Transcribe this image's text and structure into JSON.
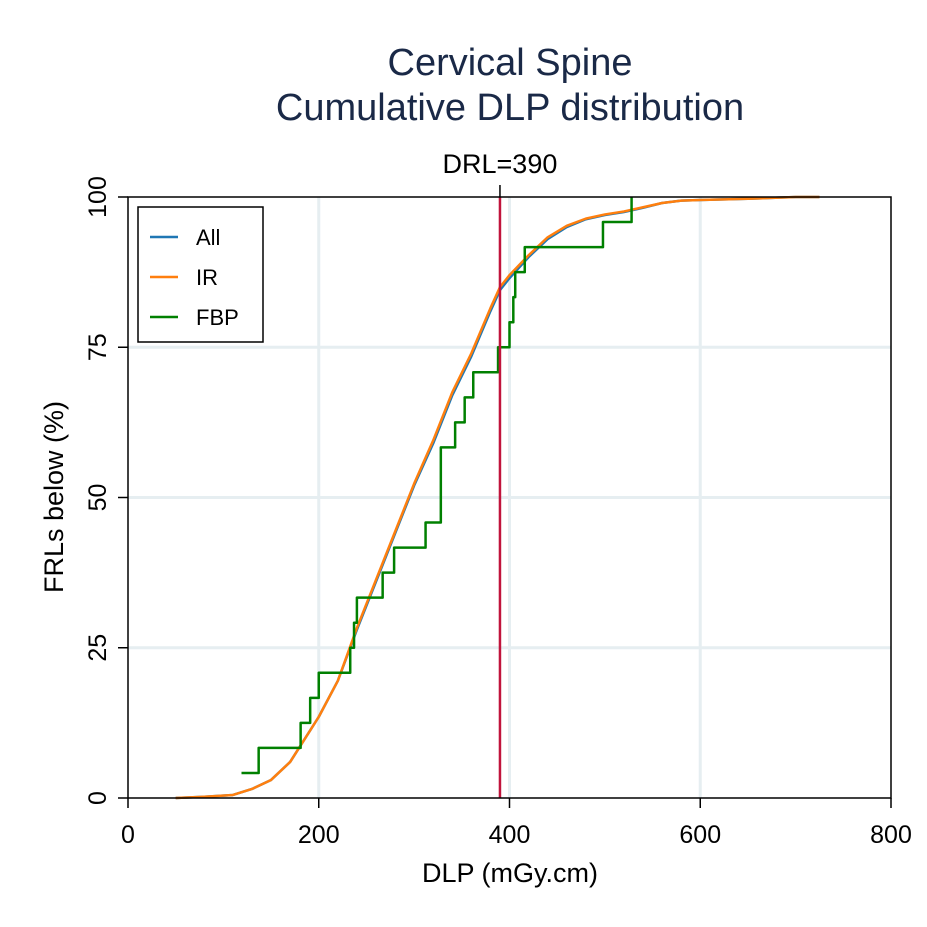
{
  "chart_data": {
    "type": "line",
    "title": "Cervical Spine",
    "subtitle": "Cumulative DLP distribution",
    "xlabel": "DLP (mGy.cm)",
    "ylabel": "FRLs below (%)",
    "xlim": [
      0,
      800
    ],
    "ylim": [
      0,
      100
    ],
    "xticks": [
      "0",
      "200",
      "400",
      "600",
      "800"
    ],
    "yticks": [
      "0",
      "25",
      "50",
      "75",
      "100"
    ],
    "grid": true,
    "legend_position": "top-left",
    "reference_line": {
      "x": 390,
      "label": "DRL=390",
      "color": "#c0143c"
    },
    "series": [
      {
        "name": "All",
        "color": "#1f77b4",
        "step": false,
        "x": [
          50,
          80,
          110,
          130,
          150,
          170,
          180,
          200,
          220,
          240,
          260,
          280,
          300,
          320,
          340,
          360,
          380,
          390,
          400,
          420,
          440,
          460,
          480,
          500,
          520,
          540,
          560,
          580,
          600,
          650,
          700,
          725
        ],
        "y": [
          0,
          0.2,
          0.5,
          1.5,
          3,
          6,
          8.5,
          13.5,
          19.5,
          28,
          36,
          44,
          52,
          59,
          67,
          73.5,
          81,
          84.5,
          86.5,
          90,
          93,
          95,
          96.3,
          97,
          97.5,
          98.2,
          99,
          99.4,
          99.5,
          99.7,
          100,
          100
        ]
      },
      {
        "name": "IR",
        "color": "#ff7f0e",
        "step": false,
        "x": [
          50,
          80,
          110,
          130,
          150,
          170,
          180,
          200,
          220,
          240,
          260,
          280,
          300,
          320,
          340,
          360,
          380,
          390,
          400,
          420,
          440,
          460,
          480,
          500,
          520,
          540,
          560,
          580,
          600,
          650,
          700,
          725
        ],
        "y": [
          0,
          0.2,
          0.5,
          1.5,
          3,
          6,
          8.5,
          13.5,
          19.5,
          28.3,
          36.3,
          44.3,
          52.3,
          59.5,
          67.5,
          74,
          81.5,
          85,
          87,
          90.3,
          93.3,
          95.2,
          96.4,
          97.1,
          97.6,
          98.3,
          99,
          99.4,
          99.5,
          99.7,
          100,
          100
        ]
      },
      {
        "name": "FBP",
        "color": "#008000",
        "step": true,
        "x": [
          119,
          137,
          181,
          191,
          200,
          233,
          237,
          240,
          267,
          279,
          312,
          328,
          343,
          353,
          362,
          388,
          400,
          404,
          406,
          416,
          498,
          528
        ],
        "y": [
          4.17,
          8.33,
          12.5,
          16.67,
          20.83,
          25,
          29.17,
          33.33,
          37.5,
          41.67,
          45.83,
          58.33,
          62.5,
          66.67,
          70.83,
          75,
          79.17,
          83.33,
          87.5,
          91.67,
          95.83,
          100
        ]
      }
    ]
  }
}
